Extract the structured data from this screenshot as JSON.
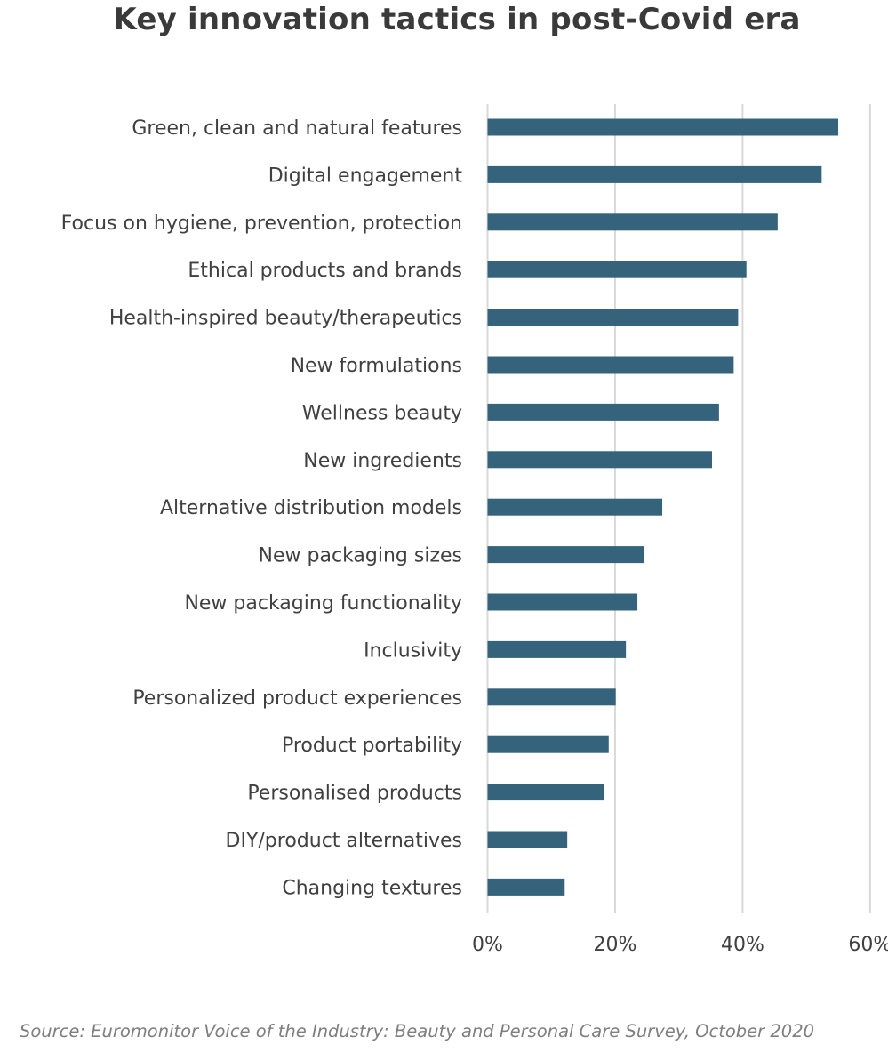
{
  "chart_data": {
    "type": "bar",
    "orientation": "horizontal",
    "title": "Key innovation tactics in post-Covid era",
    "categories": [
      "Green, clean and natural features",
      "Digital engagement",
      "Focus on hygiene, prevention, protection",
      "Ethical products and brands",
      "Health-inspired beauty/therapeutics ",
      "New formulations ",
      "Wellness beauty",
      "New ingredients ",
      "Alternative distribution models",
      "New packaging sizes",
      "New packaging functionality ",
      "Inclusivity",
      "Personalized product experiences",
      "Product portability",
      "Personalised products",
      "DIY/product alternatives",
      "Changing textures"
    ],
    "values": [
      55,
      52.4,
      45.5,
      40.6,
      39.3,
      38.6,
      36.3,
      35.2,
      27.4,
      24.6,
      23.5,
      21.7,
      20.1,
      19,
      18.2,
      12.5,
      12.1
    ],
    "xlim": [
      0,
      60
    ],
    "x_ticks": [
      0,
      20,
      40,
      60
    ],
    "x_tick_labels": [
      "0%",
      "20%",
      "40%",
      "60%"
    ],
    "xlabel": "",
    "ylabel": "",
    "grid": true,
    "bar_color": "#35637c",
    "grid_color": "#d9d9d9"
  },
  "source": "Source: Euromonitor Voice of the Industry: Beauty and Personal Care Survey, October 2020"
}
